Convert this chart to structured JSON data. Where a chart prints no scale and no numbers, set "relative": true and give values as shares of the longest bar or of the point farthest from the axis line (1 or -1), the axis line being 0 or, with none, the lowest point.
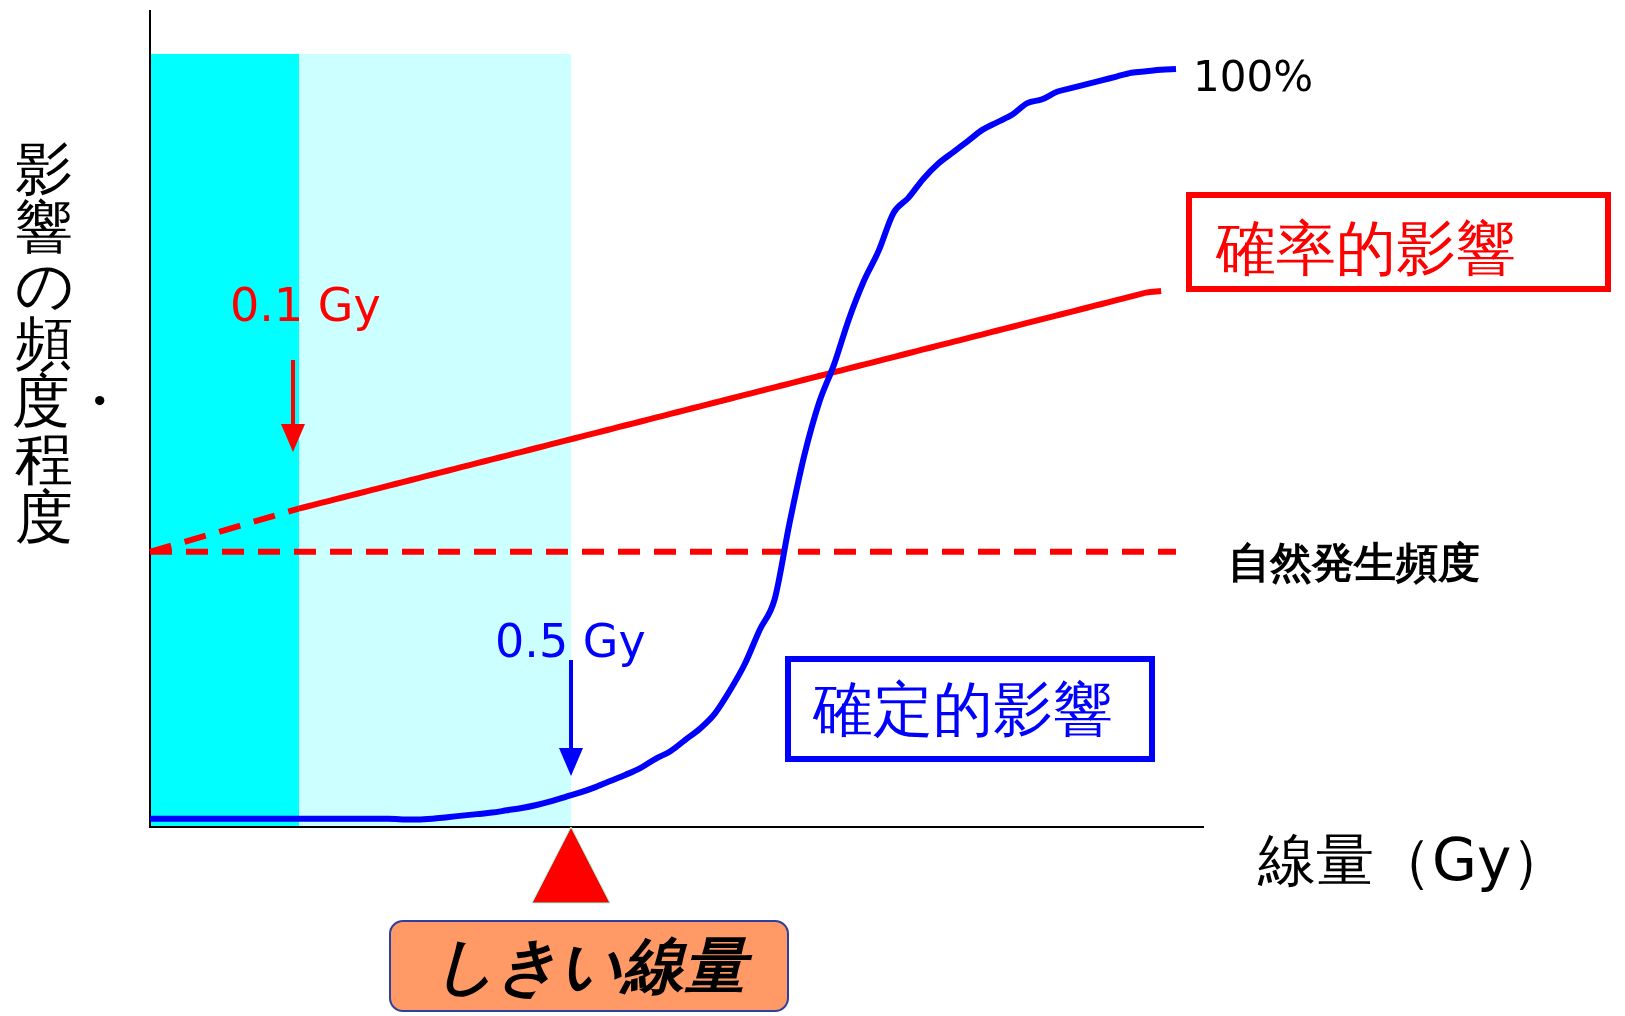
{
  "chart_data": {
    "type": "line",
    "relative": true,
    "legend": false,
    "xlabel": "線量（Gy）",
    "ylabel": "影響の頻度・程度",
    "categories": [
      null,
      null,
      null,
      null,
      null,
      null,
      null,
      null,
      null,
      null,
      null,
      null,
      null,
      null,
      null,
      null,
      null,
      null,
      null,
      null,
      null,
      null,
      null,
      null,
      null,
      null,
      null,
      null,
      null,
      null,
      null,
      null,
      null,
      null,
      null,
      null,
      null,
      null,
      null,
      null,
      null,
      null,
      null,
      null,
      null,
      null,
      null,
      null,
      null,
      null,
      null,
      null,
      null,
      null,
      null,
      null,
      null,
      null,
      null,
      null,
      null,
      null,
      null,
      null,
      null,
      null,
      null,
      null,
      null,
      null
    ],
    "series": [
      {
        "name": "確定的影響",
        "color": "#0000ff",
        "values": [
          0.011,
          0.011,
          0.011,
          0.011,
          0.011,
          0.011,
          0.011,
          0.011,
          0.011,
          0.011,
          0.011,
          0.011,
          0.011,
          0.011,
          0.011,
          0.011,
          0.011,
          0.01,
          0.01,
          0.011,
          0.013,
          0.015,
          0.017,
          0.019,
          0.022,
          0.025,
          0.029,
          0.034,
          0.04,
          0.046,
          0.053,
          0.061,
          0.069,
          0.078,
          0.09,
          0.1,
          0.115,
          0.13,
          0.15,
          0.18,
          0.215,
          0.26,
          0.3,
          0.4,
          0.49,
          0.56,
          0.61,
          0.67,
          0.72,
          0.76,
          0.81,
          0.83,
          0.855,
          0.875,
          0.89,
          0.905,
          0.92,
          0.93,
          0.94,
          0.955,
          0.96,
          0.97,
          0.975,
          0.98,
          0.985,
          0.99,
          0.995,
          0.997,
          0.999,
          1
        ]
      },
      {
        "name": "確率的影響",
        "color": "#ff0000",
        "values": [
          null,
          null,
          null,
          null,
          null,
          null,
          null,
          null,
          null,
          null,
          0.42,
          0.425,
          0.43,
          0.435,
          0.44,
          0.445,
          0.45,
          0.455,
          0.46,
          0.465,
          0.47,
          0.475,
          0.48,
          0.485,
          0.49,
          0.495,
          0.5,
          0.505,
          0.51,
          0.515,
          0.52,
          0.525,
          0.53,
          0.535,
          0.54,
          0.545,
          0.55,
          0.555,
          0.56,
          0.565,
          0.57,
          0.575,
          0.58,
          0.585,
          0.59,
          0.595,
          0.6,
          0.605,
          0.61,
          0.615,
          0.62,
          0.625,
          0.63,
          0.635,
          0.64,
          0.645,
          0.65,
          0.655,
          0.66,
          0.665,
          0.67,
          0.675,
          0.68,
          0.685,
          0.69,
          0.695,
          0.7,
          0.705,
          0.707,
          null
        ]
      },
      {
        "color": "#ff0000",
        "line_style": "dashed",
        "values": [
          0.363,
          null,
          null,
          null,
          null,
          null,
          null,
          null,
          null,
          null,
          0.42,
          null,
          null,
          null,
          null,
          null,
          null,
          null,
          null,
          null,
          null,
          null,
          null,
          null,
          null,
          null,
          null,
          null,
          null,
          null,
          null,
          null,
          null,
          null,
          null,
          null,
          null,
          null,
          null,
          null,
          null,
          null,
          null,
          null,
          null,
          null,
          null,
          null,
          null,
          null,
          null,
          null,
          null,
          null,
          null,
          null,
          null,
          null,
          null,
          null,
          null,
          null,
          null,
          null,
          null,
          null,
          null,
          null,
          null,
          null
        ]
      }
    ],
    "ref_lines": [
      {
        "axis": "y",
        "value": 0.363,
        "label": "自然発生頻度",
        "color": "#ff0000",
        "line_style": "dashed"
      }
    ],
    "annotations": [
      "100%",
      "0.1 Gy",
      "0.5 Gy",
      "しきい線量"
    ]
  }
}
